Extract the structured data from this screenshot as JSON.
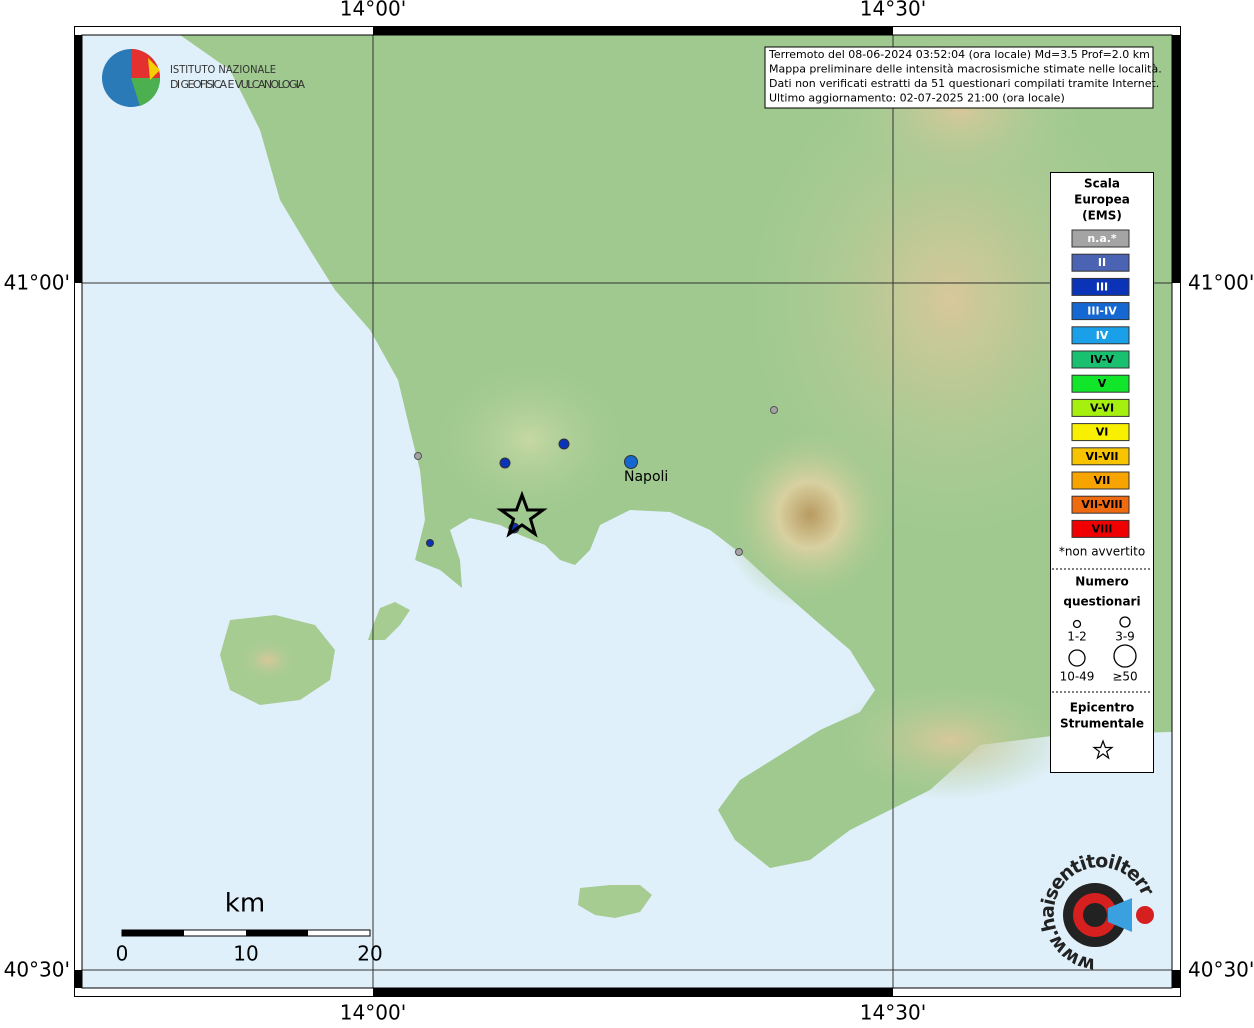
{
  "map": {
    "lon_labels": [
      "14°00'",
      "14°30'"
    ],
    "lat_labels": [
      "41°00'",
      "40°30'"
    ],
    "logo": {
      "line1": "ISTITUTO NAZIONALE",
      "line2": "DI GEOFISICA E VULCANOLOGIA"
    },
    "info": [
      "Terremoto del 08-06-2024 03:52:04 (ora locale) Md=3.5 Prof=2.0 km",
      "Mappa preliminare delle intensità macrosismiche stimate nelle località.",
      "Dati non verificati estratti da 51 questionari compilati tramite Internet.",
      "Ultimo aggiornamento: 02-07-2025 21:00 (ora locale)"
    ],
    "city": "Napoli",
    "legend": {
      "title": [
        "Scala",
        "Europea",
        "(EMS)"
      ],
      "entries": [
        {
          "label": "n.a.*",
          "color": "#a4a4a4",
          "text_color": "#ffffff"
        },
        {
          "label": "II",
          "color": "#4b63b3",
          "text_color": "#ffffff"
        },
        {
          "label": "III",
          "color": "#0b33b8",
          "text_color": "#ffffff"
        },
        {
          "label": "III-IV",
          "color": "#1568d2",
          "text_color": "#ffffff"
        },
        {
          "label": "IV",
          "color": "#1aa0e8",
          "text_color": "#ffffff"
        },
        {
          "label": "IV-V",
          "color": "#19c06f",
          "text_color": "#000000"
        },
        {
          "label": "V",
          "color": "#12e62b",
          "text_color": "#000000"
        },
        {
          "label": "V-VI",
          "color": "#a6f010",
          "text_color": "#000000"
        },
        {
          "label": "VI",
          "color": "#f8f000",
          "text_color": "#000000"
        },
        {
          "label": "VI-VII",
          "color": "#f8c400",
          "text_color": "#000000"
        },
        {
          "label": "VII",
          "color": "#f8a400",
          "text_color": "#000000"
        },
        {
          "label": "VII-VIII",
          "color": "#f06a10",
          "text_color": "#000000"
        },
        {
          "label": "VIII",
          "color": "#f00000",
          "text_color": "#000000"
        }
      ],
      "note": "*non avvertito",
      "count_title": [
        "Numero",
        "questionari"
      ],
      "counts": [
        "1-2",
        "3-9",
        "10-49",
        "≥50"
      ],
      "epicenter_title": [
        "Epicentro",
        "Strumentale"
      ]
    },
    "scale": {
      "unit": "km",
      "labels": [
        "0",
        "10",
        "20"
      ]
    },
    "site": "www.haisentitoilterremoto.it"
  }
}
